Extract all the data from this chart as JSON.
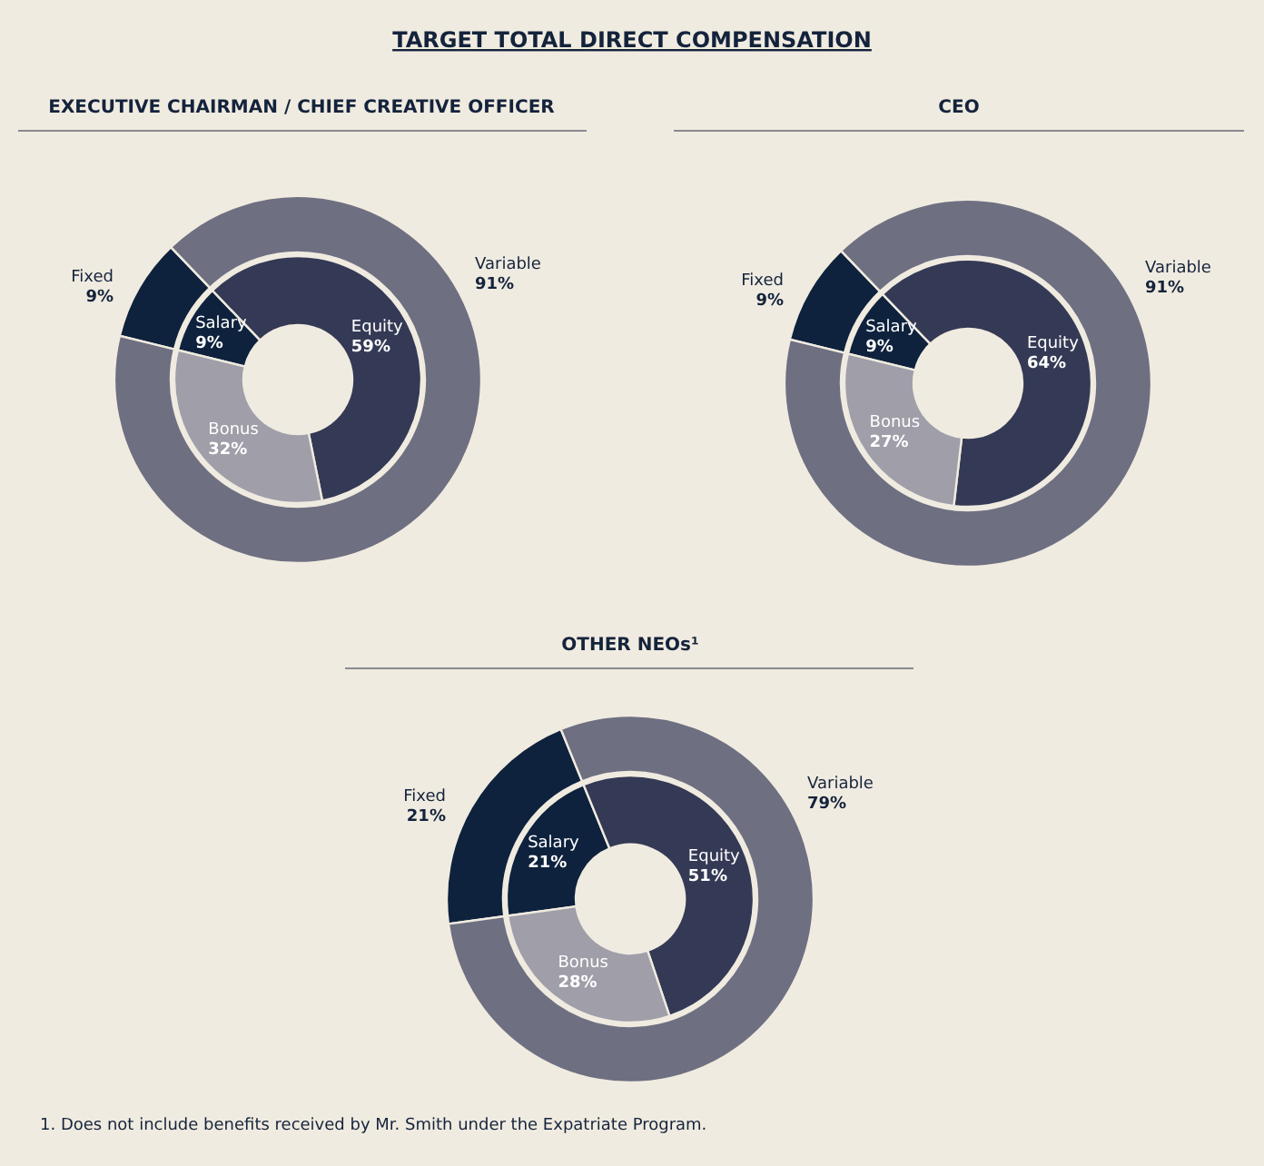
{
  "chart_data": [
    {
      "type": "donut",
      "title": "TARGET TOTAL DIRECT COMPENSATION",
      "subtitle": "EXECUTIVE CHAIRMAN / CHIEF CREATIVE OFFICER",
      "categories": [
        "Fixed",
        "Variable"
      ],
      "values": [
        9,
        91
      ],
      "value_labels": [
        "9%",
        "91%"
      ],
      "colors": [
        "#0e223d",
        "#6e6f81"
      ]
    },
    {
      "type": "donut",
      "categories": [
        "Salary",
        "Equity",
        "Bonus"
      ],
      "values": [
        9,
        59,
        32
      ],
      "value_labels": [
        "9%",
        "59%",
        "32%"
      ],
      "colors": [
        "#0e223d",
        "#343a55",
        "#9f9ea9"
      ]
    },
    {
      "type": "donut",
      "title": "CEO",
      "categories": [
        "Fixed",
        "Variable"
      ],
      "values": [
        9,
        91
      ],
      "value_labels": [
        "9%",
        "91%"
      ],
      "colors": [
        "#0e223d",
        "#6e6f81"
      ]
    },
    {
      "type": "donut",
      "categories": [
        "Salary",
        "Equity",
        "Bonus"
      ],
      "values": [
        9,
        64,
        27
      ],
      "value_labels": [
        "9%",
        "64%",
        "27%"
      ],
      "colors": [
        "#0e223d",
        "#343a55",
        "#9f9ea9"
      ]
    },
    {
      "type": "donut",
      "title": "OTHER NEOs¹",
      "categories": [
        "Fixed",
        "Variable"
      ],
      "values": [
        21,
        79
      ],
      "value_labels": [
        "21%",
        "79%"
      ],
      "colors": [
        "#0e223d",
        "#6e6f81"
      ],
      "annotations": [
        "1. Does not include benefits received by Mr. Smith under the Expatriate Program."
      ]
    },
    {
      "type": "donut",
      "categories": [
        "Salary",
        "Equity",
        "Bonus"
      ],
      "values": [
        21,
        51,
        28
      ],
      "value_labels": [
        "21%",
        "51%",
        "28%"
      ],
      "colors": [
        "#0e223d",
        "#343a55",
        "#9f9ea9"
      ]
    }
  ]
}
